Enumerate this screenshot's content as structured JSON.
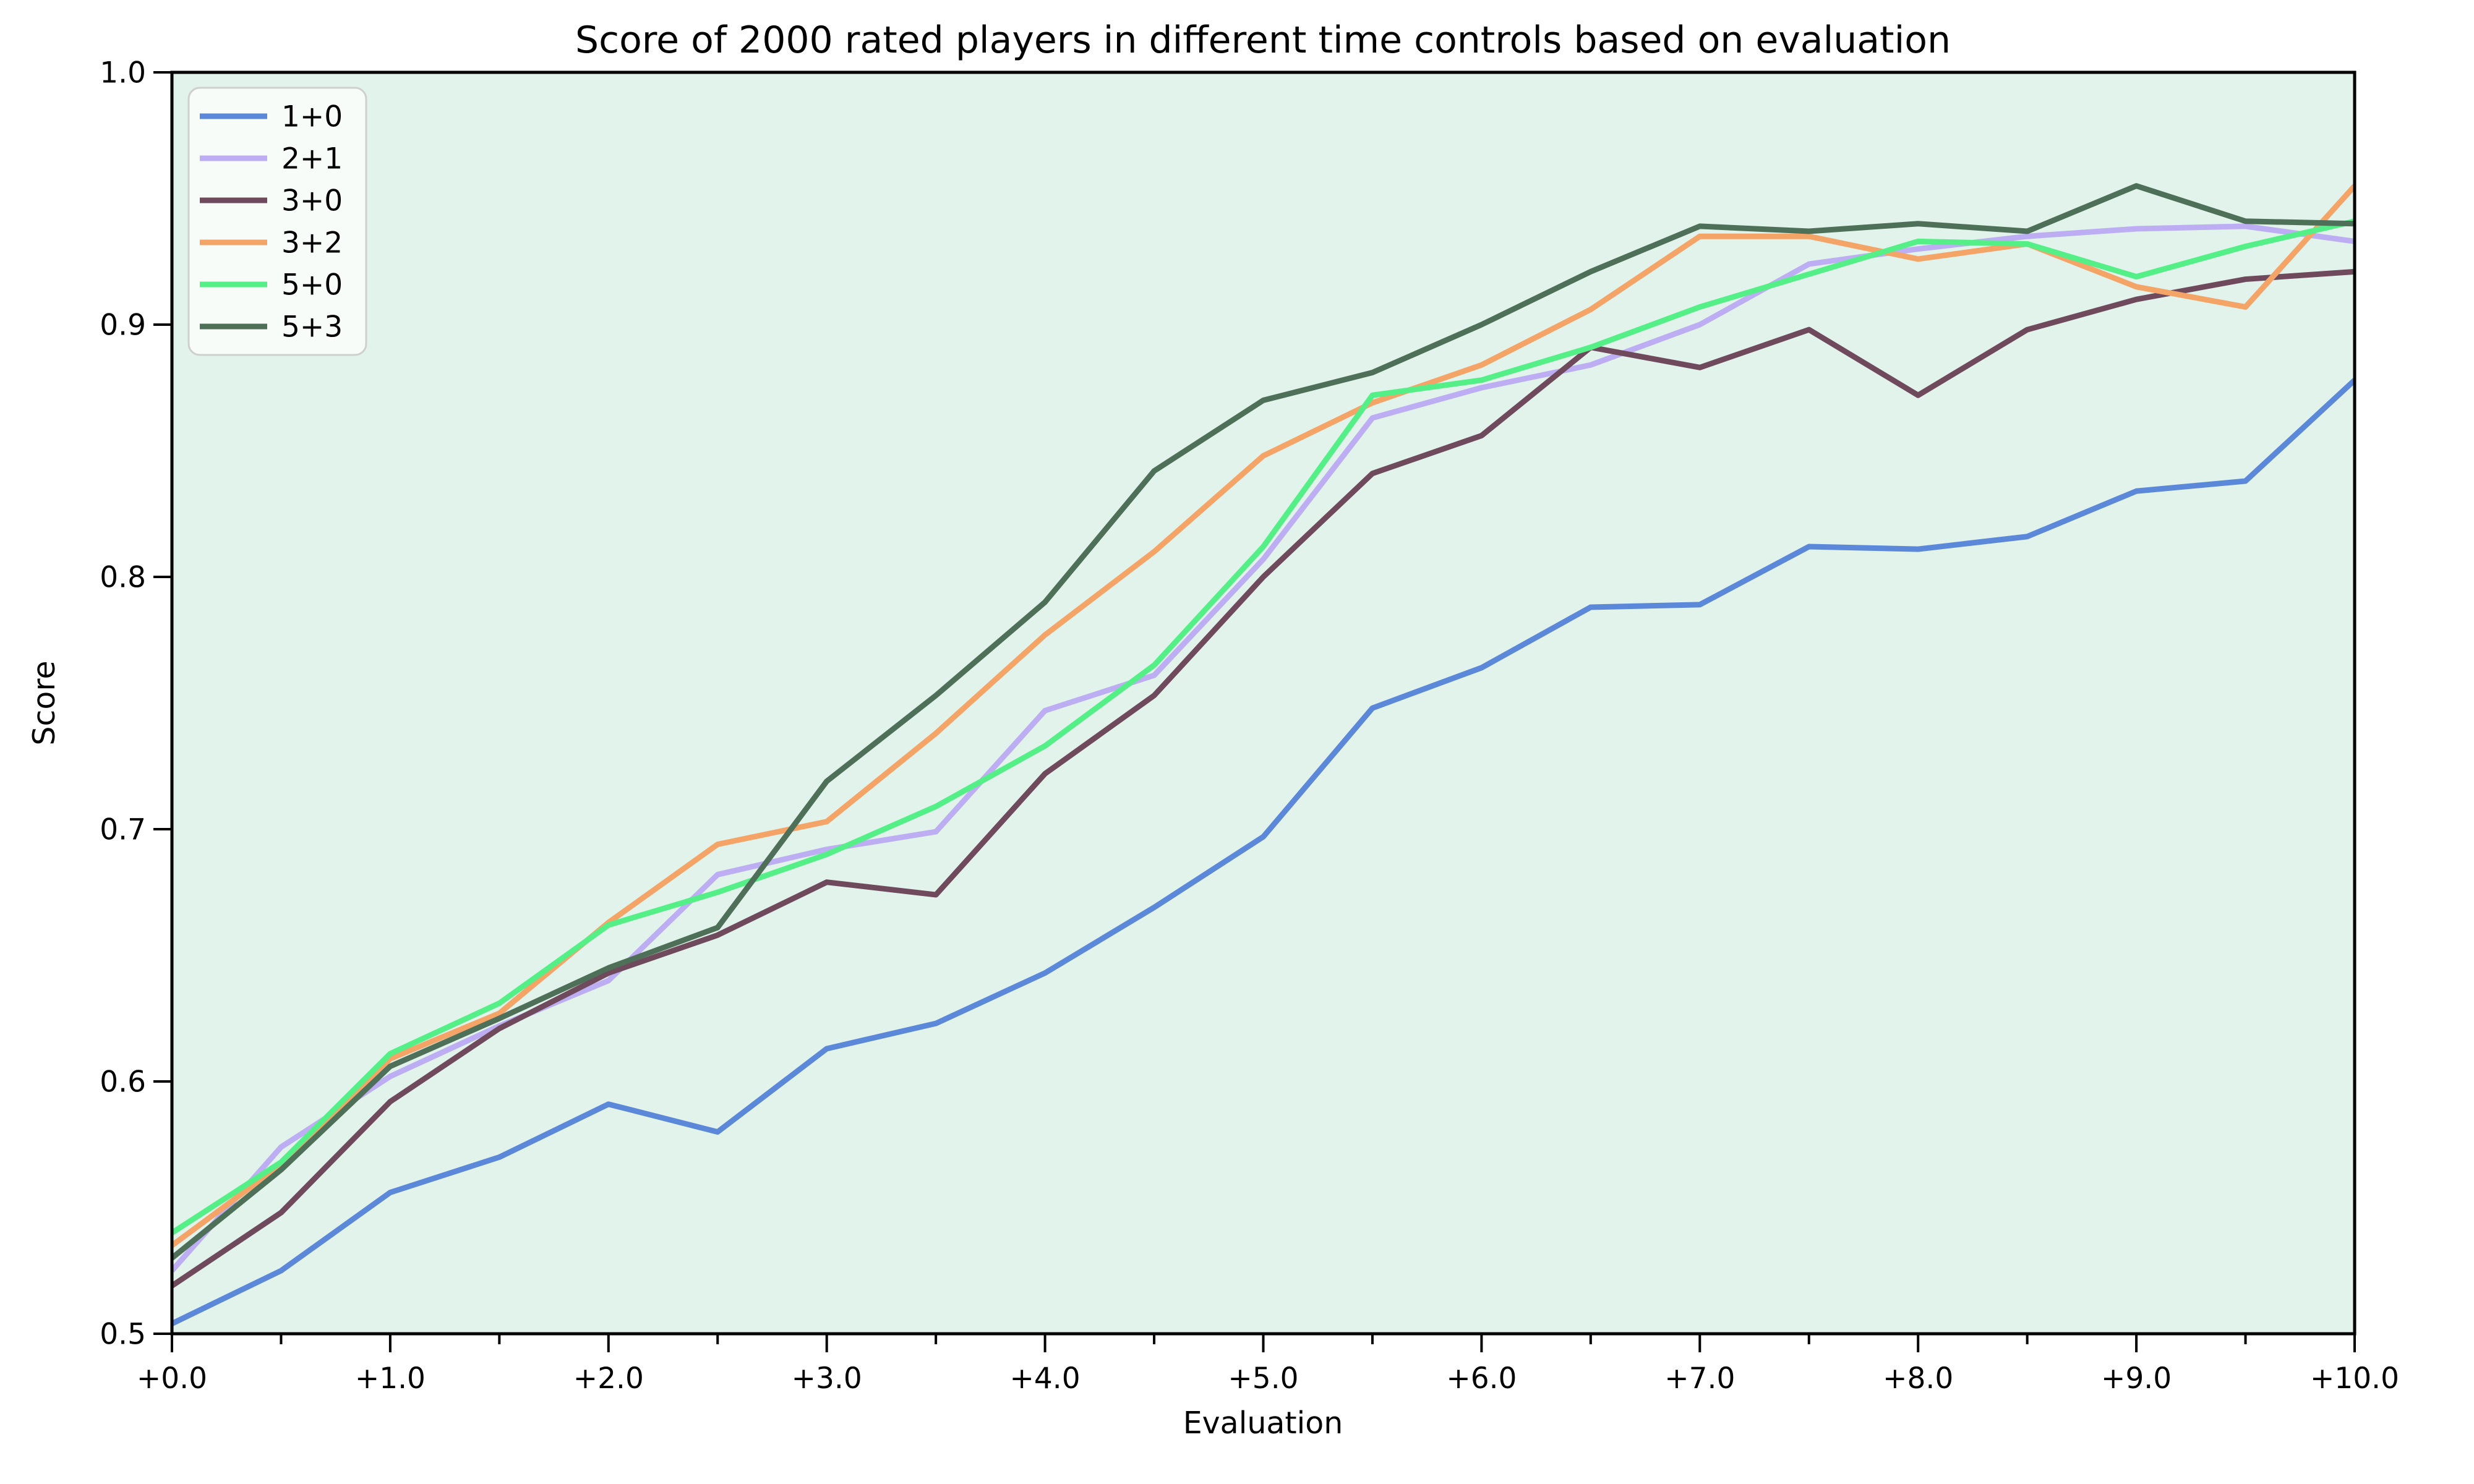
{
  "chart_data": {
    "type": "line",
    "title": "Score of 2000 rated players in different time controls based on evaluation",
    "xlabel": "Evaluation",
    "ylabel": "Score",
    "xlim": [
      0.0,
      10.0
    ],
    "ylim": [
      0.5,
      1.0
    ],
    "grid": false,
    "legend_position": "upper left",
    "plot_background_color": "#e2f3eb",
    "figure_background_color": "#ffffff",
    "spine_color": "#000000",
    "legend_background_color": "#fafdfb",
    "legend_border_color": "#cfcfcf",
    "x_tick_labels": [
      "+0.0",
      "+1.0",
      "+2.0",
      "+3.0",
      "+4.0",
      "+5.0",
      "+6.0",
      "+7.0",
      "+8.0",
      "+9.0",
      "+10.0"
    ],
    "x_ticks": [
      0,
      1,
      2,
      3,
      4,
      5,
      6,
      7,
      8,
      9,
      10
    ],
    "x_minor_ticks": [
      0.5,
      1.5,
      2.5,
      3.5,
      4.5,
      5.5,
      6.5,
      7.5,
      8.5,
      9.5
    ],
    "y_tick_labels": [
      "0.5",
      "0.6",
      "0.7",
      "0.8",
      "0.9",
      "1.0"
    ],
    "y_ticks": [
      0.5,
      0.6,
      0.7,
      0.8,
      0.9,
      1.0
    ],
    "x": [
      0.0,
      0.5,
      1.0,
      1.5,
      2.0,
      2.5,
      3.0,
      3.5,
      4.0,
      4.5,
      5.0,
      5.5,
      6.0,
      6.5,
      7.0,
      7.5,
      8.0,
      8.5,
      9.0,
      9.5,
      10.0
    ],
    "series": [
      {
        "name": "1+0",
        "color": "#5b88d9",
        "values": [
          0.504,
          0.525,
          0.556,
          0.57,
          0.591,
          0.58,
          0.613,
          0.623,
          0.643,
          0.669,
          0.697,
          0.748,
          0.764,
          0.788,
          0.789,
          0.812,
          0.811,
          0.816,
          0.834,
          0.838,
          0.878
        ]
      },
      {
        "name": "2+1",
        "color": "#bdaef3",
        "values": [
          0.525,
          0.574,
          0.602,
          0.622,
          0.64,
          0.682,
          0.692,
          0.699,
          0.747,
          0.761,
          0.807,
          0.863,
          0.875,
          0.884,
          0.9,
          0.924,
          0.93,
          0.935,
          0.938,
          0.939,
          0.933
        ]
      },
      {
        "name": "3+0",
        "color": "#6f4a5d",
        "values": [
          0.519,
          0.548,
          0.592,
          0.621,
          0.643,
          0.658,
          0.679,
          0.674,
          0.722,
          0.753,
          0.8,
          0.841,
          0.856,
          0.891,
          0.883,
          0.898,
          0.872,
          0.898,
          0.91,
          0.918,
          0.921
        ]
      },
      {
        "name": "3+2",
        "color": "#f5a467",
        "values": [
          0.535,
          0.567,
          0.609,
          0.627,
          0.663,
          0.694,
          0.703,
          0.738,
          0.777,
          0.81,
          0.848,
          0.869,
          0.884,
          0.906,
          0.935,
          0.935,
          0.926,
          0.932,
          0.915,
          0.907,
          0.955
        ]
      },
      {
        "name": "5+0",
        "color": "#55ef87",
        "values": [
          0.54,
          0.568,
          0.611,
          0.631,
          0.662,
          0.675,
          0.69,
          0.709,
          0.733,
          0.765,
          0.812,
          0.872,
          0.878,
          0.891,
          0.907,
          0.92,
          0.933,
          0.932,
          0.919,
          0.931,
          0.941
        ]
      },
      {
        "name": "5+3",
        "color": "#4f7058",
        "values": [
          0.53,
          0.565,
          0.606,
          0.625,
          0.645,
          0.661,
          0.719,
          0.753,
          0.79,
          0.842,
          0.87,
          0.881,
          0.9,
          0.921,
          0.939,
          0.937,
          0.94,
          0.937,
          0.955,
          0.941,
          0.94
        ]
      }
    ]
  }
}
